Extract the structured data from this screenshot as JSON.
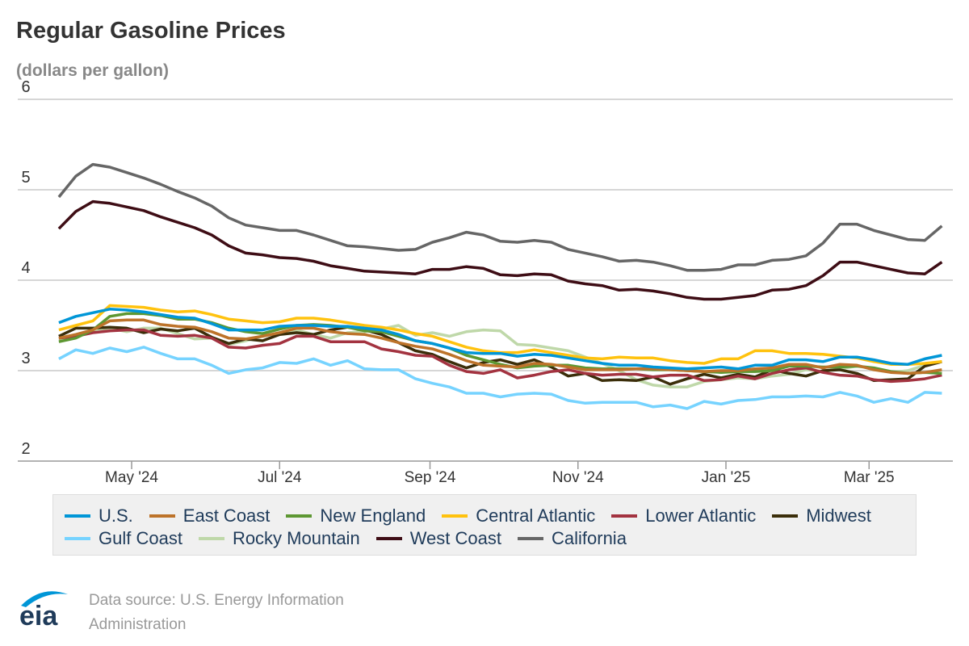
{
  "chart_data": {
    "type": "line",
    "title": "Regular Gasoline Prices",
    "subtitle": "(dollars per gallon)",
    "ylim": [
      2,
      6
    ],
    "yticks": [
      "2",
      "3",
      "4",
      "5",
      "6"
    ],
    "xticks": [
      {
        "label": "May '24",
        "date": "2024-05-01"
      },
      {
        "label": "Jul '24",
        "date": "2024-07-01"
      },
      {
        "label": "Sep '24",
        "date": "2024-09-01"
      },
      {
        "label": "Nov '24",
        "date": "2024-11-01"
      },
      {
        "label": "Jan '25",
        "date": "2025-01-01"
      },
      {
        "label": "Mar '25",
        "date": "2025-03-01"
      }
    ],
    "x_start": "2024-04-01",
    "x_frequency": "weekly",
    "grid": true,
    "legend_placement": "bottom",
    "series": [
      {
        "name": "U.S.",
        "color": "#0096d7",
        "values": [
          3.53,
          3.6,
          3.64,
          3.68,
          3.67,
          3.65,
          3.62,
          3.59,
          3.58,
          3.52,
          3.45,
          3.45,
          3.45,
          3.49,
          3.5,
          3.5,
          3.49,
          3.49,
          3.47,
          3.45,
          3.4,
          3.33,
          3.3,
          3.25,
          3.2,
          3.19,
          3.19,
          3.16,
          3.18,
          3.17,
          3.14,
          3.11,
          3.08,
          3.06,
          3.06,
          3.04,
          3.03,
          3.02,
          3.03,
          3.04,
          3.02,
          3.06,
          3.06,
          3.12,
          3.12,
          3.1,
          3.15,
          3.15,
          3.12,
          3.08,
          3.07,
          3.13,
          3.17
        ]
      },
      {
        "name": "East Coast",
        "color": "#bd732a",
        "values": [
          3.36,
          3.4,
          3.45,
          3.55,
          3.56,
          3.56,
          3.51,
          3.49,
          3.48,
          3.43,
          3.36,
          3.35,
          3.38,
          3.42,
          3.47,
          3.47,
          3.43,
          3.41,
          3.4,
          3.36,
          3.31,
          3.27,
          3.24,
          3.18,
          3.11,
          3.06,
          3.05,
          3.04,
          3.08,
          3.07,
          3.04,
          3.01,
          3.01,
          3.01,
          3.02,
          3.02,
          3.01,
          3.0,
          2.99,
          3.0,
          3.0,
          3.02,
          3.03,
          3.07,
          3.07,
          3.03,
          3.07,
          3.06,
          3.01,
          2.98,
          2.97,
          2.98,
          3.01
        ]
      },
      {
        "name": "New England",
        "color": "#5d9732",
        "values": [
          3.32,
          3.36,
          3.45,
          3.6,
          3.63,
          3.63,
          3.61,
          3.57,
          3.57,
          3.53,
          3.47,
          3.43,
          3.41,
          3.46,
          3.5,
          3.51,
          3.5,
          3.48,
          3.44,
          3.43,
          3.38,
          3.33,
          3.3,
          3.25,
          3.17,
          3.12,
          3.07,
          3.03,
          3.05,
          3.06,
          3.06,
          3.03,
          3.02,
          3.02,
          3.02,
          3.01,
          3.01,
          3.0,
          2.99,
          2.98,
          2.99,
          2.99,
          3.0,
          3.05,
          3.05,
          3.04,
          3.04,
          3.05,
          3.03,
          2.99,
          2.97,
          2.98,
          2.97
        ]
      },
      {
        "name": "Central Atlantic",
        "color": "#ffc20e",
        "values": [
          3.45,
          3.5,
          3.55,
          3.72,
          3.71,
          3.7,
          3.67,
          3.65,
          3.66,
          3.62,
          3.57,
          3.55,
          3.53,
          3.54,
          3.58,
          3.58,
          3.56,
          3.53,
          3.5,
          3.48,
          3.45,
          3.41,
          3.38,
          3.32,
          3.26,
          3.22,
          3.2,
          3.2,
          3.23,
          3.2,
          3.17,
          3.14,
          3.13,
          3.15,
          3.14,
          3.14,
          3.11,
          3.09,
          3.08,
          3.13,
          3.13,
          3.22,
          3.22,
          3.19,
          3.19,
          3.18,
          3.16,
          3.14,
          3.1,
          3.07,
          3.07,
          3.08,
          3.1
        ]
      },
      {
        "name": "Lower Atlantic",
        "color": "#a33340",
        "values": [
          3.36,
          3.38,
          3.42,
          3.44,
          3.45,
          3.45,
          3.39,
          3.38,
          3.39,
          3.36,
          3.26,
          3.25,
          3.28,
          3.3,
          3.38,
          3.38,
          3.32,
          3.32,
          3.32,
          3.24,
          3.21,
          3.17,
          3.16,
          3.06,
          2.99,
          2.97,
          3.01,
          2.92,
          2.95,
          2.99,
          3.01,
          2.97,
          2.95,
          2.96,
          2.96,
          2.93,
          2.95,
          2.95,
          2.89,
          2.9,
          2.94,
          2.91,
          2.97,
          3.01,
          3.03,
          2.98,
          2.95,
          2.94,
          2.9,
          2.88,
          2.89,
          2.91,
          2.95
        ]
      },
      {
        "name": "Midwest",
        "color": "#3b2e0a",
        "values": [
          3.38,
          3.47,
          3.47,
          3.48,
          3.47,
          3.42,
          3.46,
          3.44,
          3.47,
          3.37,
          3.3,
          3.35,
          3.33,
          3.4,
          3.42,
          3.4,
          3.45,
          3.48,
          3.45,
          3.4,
          3.31,
          3.22,
          3.18,
          3.1,
          3.03,
          3.09,
          3.12,
          3.07,
          3.12,
          3.04,
          2.94,
          2.97,
          2.89,
          2.9,
          2.89,
          2.93,
          2.85,
          2.91,
          2.96,
          2.92,
          2.96,
          2.93,
          3.01,
          2.97,
          2.94,
          3.0,
          3.01,
          2.97,
          2.89,
          2.9,
          2.91,
          3.05,
          3.1
        ]
      },
      {
        "name": "Gulf Coast",
        "color": "#76d3ff",
        "values": [
          3.13,
          3.23,
          3.19,
          3.25,
          3.21,
          3.26,
          3.19,
          3.13,
          3.13,
          3.06,
          2.97,
          3.01,
          3.03,
          3.09,
          3.08,
          3.13,
          3.06,
          3.11,
          3.02,
          3.01,
          3.01,
          2.91,
          2.86,
          2.82,
          2.75,
          2.75,
          2.71,
          2.74,
          2.75,
          2.74,
          2.67,
          2.64,
          2.65,
          2.65,
          2.65,
          2.6,
          2.62,
          2.58,
          2.66,
          2.63,
          2.67,
          2.68,
          2.71,
          2.71,
          2.72,
          2.71,
          2.76,
          2.72,
          2.65,
          2.69,
          2.65,
          2.76,
          2.75
        ]
      },
      {
        "name": "Rocky Mountain",
        "color": "#bfd8a9",
        "values": [
          3.34,
          3.39,
          3.44,
          3.47,
          3.43,
          3.47,
          3.47,
          3.41,
          3.35,
          3.36,
          3.29,
          3.33,
          3.38,
          3.42,
          3.45,
          3.4,
          3.36,
          3.42,
          3.43,
          3.46,
          3.5,
          3.39,
          3.42,
          3.38,
          3.43,
          3.45,
          3.44,
          3.29,
          3.28,
          3.25,
          3.22,
          3.15,
          3.08,
          3.0,
          2.9,
          2.84,
          2.82,
          2.82,
          2.88,
          2.9,
          2.92,
          2.91,
          2.94,
          2.96,
          3.01,
          2.99,
          3.02,
          3.05,
          3.02,
          2.98,
          3.0,
          3.06,
          3.1
        ]
      },
      {
        "name": "West Coast",
        "color": "#3e0d15",
        "values": [
          4.57,
          4.76,
          4.87,
          4.85,
          4.81,
          4.77,
          4.7,
          4.64,
          4.58,
          4.5,
          4.38,
          4.3,
          4.28,
          4.25,
          4.24,
          4.21,
          4.16,
          4.13,
          4.1,
          4.09,
          4.08,
          4.07,
          4.12,
          4.12,
          4.15,
          4.13,
          4.06,
          4.05,
          4.07,
          4.06,
          3.99,
          3.96,
          3.94,
          3.89,
          3.9,
          3.88,
          3.85,
          3.81,
          3.79,
          3.79,
          3.81,
          3.83,
          3.89,
          3.9,
          3.94,
          4.05,
          4.2,
          4.2,
          4.16,
          4.12,
          4.08,
          4.07,
          4.2
        ]
      },
      {
        "name": "California",
        "color": "#666666",
        "values": [
          4.92,
          5.15,
          5.28,
          5.25,
          5.19,
          5.13,
          5.06,
          4.98,
          4.91,
          4.82,
          4.69,
          4.61,
          4.58,
          4.55,
          4.55,
          4.5,
          4.44,
          4.38,
          4.37,
          4.35,
          4.33,
          4.34,
          4.42,
          4.47,
          4.53,
          4.5,
          4.43,
          4.42,
          4.44,
          4.42,
          4.34,
          4.3,
          4.26,
          4.21,
          4.22,
          4.2,
          4.16,
          4.11,
          4.11,
          4.12,
          4.17,
          4.17,
          4.22,
          4.23,
          4.27,
          4.41,
          4.62,
          4.62,
          4.55,
          4.5,
          4.45,
          4.44,
          4.6
        ]
      }
    ]
  },
  "footer": {
    "source_line1": "Data source: U.S. Energy Information",
    "source_line2": "Administration",
    "logo_text": "eia"
  }
}
